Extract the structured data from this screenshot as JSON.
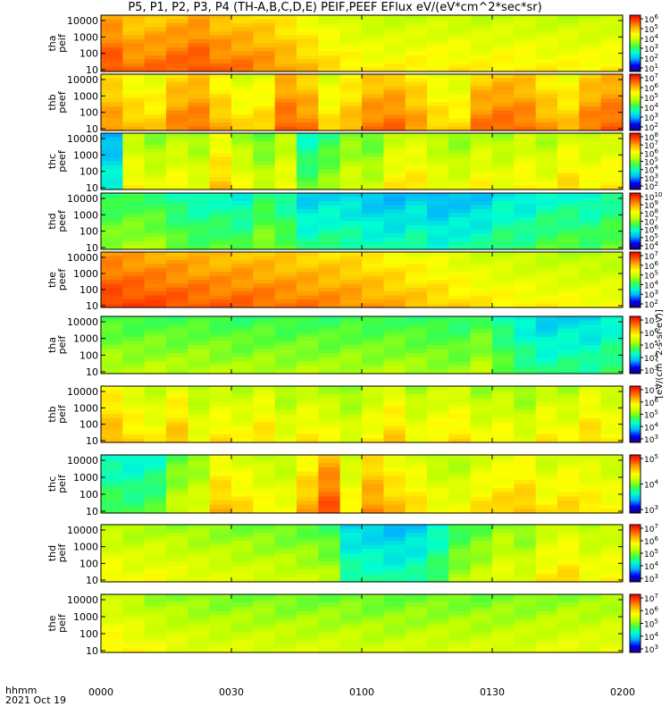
{
  "title": "P5, P1, P2, P3, P4 (TH-A,B,C,D,E) PEIF,PEEF EFlux eV/(eV*cm^2*sec*sr)",
  "footer": {
    "time_label": "hhmm",
    "date_label": "2021 Oct 19"
  },
  "colorbar_unit_label": "[eV/(cm^2-s-sr-eV)]",
  "chart_data": {
    "type": "heatmap",
    "x_unit": "hhmm",
    "x_ticks": [
      "0000",
      "0030",
      "0100",
      "0130",
      "0200"
    ],
    "xlim": [
      "00:00",
      "02:00"
    ],
    "y_scale": "log",
    "y_ticks": [
      "10",
      "100",
      "1000",
      "10000"
    ],
    "colormap": [
      "#1a0070",
      "#0000ff",
      "#00b0ff",
      "#00ffd0",
      "#40ff40",
      "#c0ff00",
      "#ffff00",
      "#ffb000",
      "#ff5000",
      "#ee0000"
    ],
    "panels": [
      {
        "ylabel": "tha peif",
        "cb_ticks": [
          "10^1",
          "10^2",
          "10^3",
          "10^4",
          "10^5",
          "10^6"
        ],
        "columns": [
          9,
          8.5,
          8.6,
          8.8,
          9,
          8.6,
          8.5,
          8.3,
          8,
          7.6,
          7.2,
          7,
          6.8,
          6.8,
          6.9,
          6.9,
          6.9,
          6.8,
          6.9,
          6.9,
          6.8,
          6.8,
          6.8,
          6.9
        ]
      },
      {
        "ylabel": "thb peef",
        "cb_ticks": [
          "10^2",
          "10^3",
          "10^4",
          "10^5",
          "10^6",
          "10^7"
        ],
        "columns": [
          8.2,
          7.6,
          7.4,
          8.4,
          8.6,
          7.8,
          7.2,
          7.4,
          8.8,
          8.4,
          7.2,
          7.8,
          8.5,
          8.6,
          8.1,
          7.4,
          7.2,
          8.5,
          8.7,
          8.6,
          8,
          7.6,
          8.5,
          8.8
        ]
      },
      {
        "ylabel": "thc peef",
        "cb_ticks": [
          "10^2",
          "10^3",
          "10^4",
          "10^5",
          "10^6",
          "10^7",
          "10^8"
        ],
        "columns": [
          3.4,
          6.8,
          6.2,
          6.7,
          6.3,
          7.5,
          6.5,
          5.8,
          6.6,
          4.6,
          5.3,
          6.1,
          5.8,
          6.9,
          7.1,
          6.5,
          6.2,
          6.8,
          6.4,
          6.9,
          6.5,
          7.2,
          6.8,
          7
        ]
      },
      {
        "ylabel": "thd peef",
        "cb_ticks": [
          "10^4",
          "10^5",
          "10^6",
          "10^7",
          "10^8",
          "10^9",
          "10^10"
        ],
        "columns": [
          5.2,
          5.4,
          5.3,
          4.8,
          4.5,
          4.6,
          4.4,
          5.2,
          4.7,
          3.8,
          4,
          3.9,
          3.6,
          3.5,
          3.8,
          3.4,
          3.6,
          3.7,
          4.2,
          4.1,
          4.5,
          4.6,
          4.4,
          4.8
        ]
      },
      {
        "ylabel": "the peef",
        "cb_ticks": [
          "10^2",
          "10^3",
          "10^4",
          "10^5",
          "10^6",
          "10^7"
        ],
        "columns": [
          9.2,
          9.1,
          9,
          8.9,
          8.8,
          8.7,
          8.7,
          8.6,
          8.5,
          8.4,
          8.3,
          8.2,
          8,
          7.8,
          7.6,
          7.4,
          7.2,
          7,
          6.9,
          6.8,
          6.7,
          6.7,
          6.6,
          6.6
        ]
      },
      {
        "ylabel": "tha peif",
        "cb_ticks": [
          "10^3",
          "10^4",
          "10^5",
          "10^6",
          "10^7"
        ],
        "columns": [
          5.6,
          5.5,
          5.6,
          5.5,
          5.6,
          5.5,
          5.4,
          5.5,
          5.4,
          5.5,
          5.4,
          5.5,
          5.4,
          5.5,
          5.4,
          5.3,
          5.2,
          5.6,
          4.8,
          4.2,
          3.8,
          4,
          3.9,
          4.3
        ]
      },
      {
        "ylabel": "thb peif",
        "cb_ticks": [
          "10^3",
          "10^4",
          "10^5",
          "10^6",
          "10^7"
        ],
        "columns": [
          7.8,
          7.2,
          6.8,
          7.6,
          6.5,
          7,
          6.7,
          7.2,
          6.4,
          6.9,
          6.6,
          6.2,
          6.8,
          7.4,
          6.5,
          6.9,
          7.1,
          6.4,
          6.7,
          6.2,
          6.9,
          6.6,
          7.3,
          6.8
        ]
      },
      {
        "ylabel": "thc peif",
        "cb_ticks": [
          "10^3",
          "10^4",
          "10^5"
        ],
        "columns": [
          4.5,
          4.3,
          4.6,
          5.8,
          6.2,
          7.6,
          7.2,
          6.8,
          6.6,
          7.8,
          8.9,
          6.9,
          8.2,
          7.6,
          7.2,
          6.6,
          6.5,
          7.1,
          7.4,
          7.6,
          6.9,
          7.3,
          7.1,
          6.8
        ]
      },
      {
        "ylabel": "thd peif",
        "cb_ticks": [
          "10^3",
          "10^4",
          "10^5",
          "10^6",
          "10^7"
        ],
        "columns": [
          6.7,
          6.5,
          6.6,
          6.4,
          6.3,
          6.2,
          6.1,
          6,
          5.9,
          5.8,
          5.5,
          3.9,
          3.8,
          3.6,
          3.8,
          4.4,
          5.4,
          5.8,
          6.4,
          6.1,
          6.9,
          7.2,
          6.6,
          6.8
        ]
      },
      {
        "ylabel": "the peif",
        "cb_ticks": [
          "10^3",
          "10^4",
          "10^5",
          "10^6",
          "10^7"
        ],
        "columns": [
          6.9,
          6.7,
          6.4,
          6.3,
          6.2,
          6.1,
          6.1,
          6.1,
          6,
          6,
          6,
          6,
          5.9,
          5.9,
          6,
          6,
          6,
          6,
          6.1,
          6.1,
          6.2,
          6.3,
          6.3,
          6.4
        ]
      }
    ]
  }
}
